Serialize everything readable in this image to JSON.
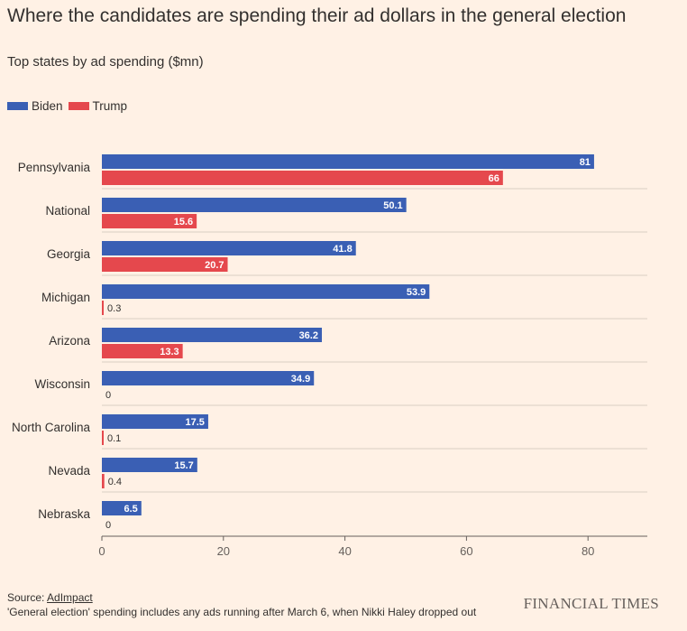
{
  "title": "Where the candidates are spending their ad dollars in the general election",
  "subtitle": "Top states by ad spending ($mn)",
  "legend": [
    {
      "name": "Biden",
      "color": "#3a5fb4"
    },
    {
      "name": "Trump",
      "color": "#e5484d"
    }
  ],
  "footer": {
    "source_prefix": "Source: ",
    "source_link": "AdImpact",
    "note": "'General election' spending includes any ads running after March 6, when Nikki Haley dropped out",
    "brand": "FINANCIAL TIMES"
  },
  "colors": {
    "background": "#fff1e5",
    "biden": "#3a5fb4",
    "trump": "#e5484d",
    "gridline": "#d8cec4",
    "axis": "#66605c"
  },
  "chart_data": {
    "type": "bar",
    "orientation": "horizontal",
    "categories": [
      "Pennsylvania",
      "National",
      "Georgia",
      "Michigan",
      "Arizona",
      "Wisconsin",
      "North Carolina",
      "Nevada",
      "Nebraska"
    ],
    "series": [
      {
        "name": "Biden",
        "values": [
          81,
          50.1,
          41.8,
          53.9,
          36.2,
          34.9,
          17.5,
          15.7,
          6.5
        ],
        "labels": [
          "81",
          "50.1",
          "41.8",
          "53.9",
          "36.2",
          "34.9",
          "17.5",
          "15.7",
          "6.5"
        ]
      },
      {
        "name": "Trump",
        "values": [
          66,
          15.6,
          20.7,
          0.3,
          13.3,
          0,
          0.1,
          0.4,
          0
        ],
        "labels": [
          "66",
          "15.6",
          "20.7",
          "0.3",
          "13.3",
          "0",
          "0.1",
          "0.4",
          "0"
        ]
      }
    ],
    "xlim": [
      0,
      90
    ],
    "xticks": [
      0,
      20,
      40,
      60,
      80
    ],
    "title": "Where the candidates are spending their ad dollars in the general election",
    "subtitle": "Top states by ad spending ($mn)",
    "legend_position": "top-left",
    "grid": "horizontal separators between categories"
  }
}
